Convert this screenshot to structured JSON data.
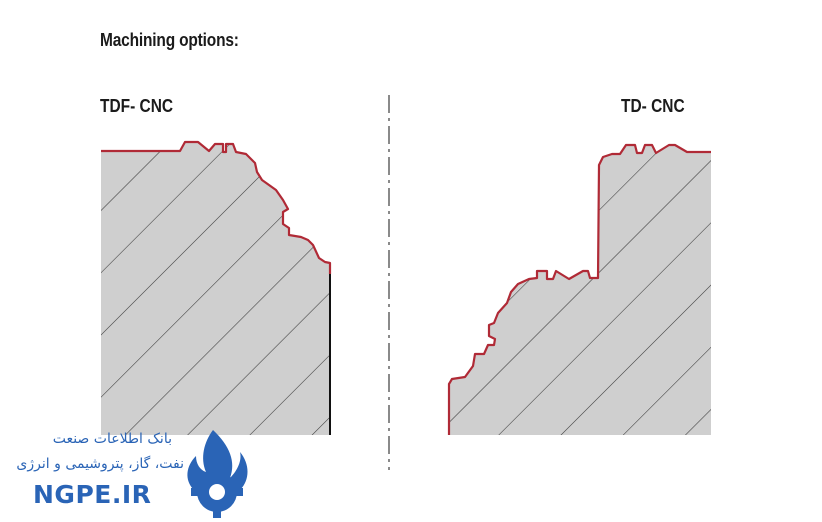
{
  "heading": "Machining options:",
  "profiles": [
    {
      "label": "TDF- CNC"
    },
    {
      "label": "TD- CNC"
    }
  ],
  "colors": {
    "fill": "#cfcfcf",
    "hatch": "#3a3a3a",
    "outline": "#b02a36",
    "divider": "#8a8a8a",
    "watermark": "#2a64b6"
  },
  "watermark": {
    "line1": "بانک اطلاعات صنعت",
    "line2": "نفت، گاز، پتروشیمی و انرژی",
    "site": "NGPE.IR",
    "logo_icon": "flame-gear-icon"
  }
}
